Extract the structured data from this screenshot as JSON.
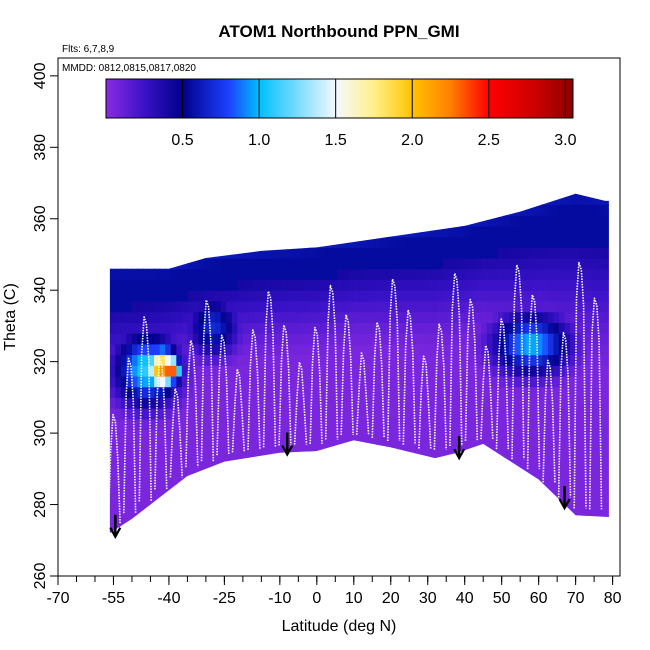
{
  "chart_data": {
    "type": "heatmap",
    "title": "ATOM1 Northbound PPN_GMI",
    "annotations": [
      "Flts: 6,7,8,9",
      "MMDD: 0812,0815,0817,0820"
    ],
    "xlabel": "Latitude (deg N)",
    "ylabel": "Theta (C)",
    "xlim": [
      -70,
      82
    ],
    "ylim": [
      260,
      405
    ],
    "x_ticks": [
      -70,
      -55,
      -40,
      -25,
      -10,
      0,
      10,
      20,
      30,
      40,
      50,
      60,
      70,
      80
    ],
    "x_tick_labels": [
      "-70",
      "-55",
      "-40",
      "-25",
      "-10",
      "0",
      "10",
      "20",
      "30",
      "40",
      "50",
      "60",
      "70",
      "80"
    ],
    "x_minor_step": 5,
    "y_ticks": [
      260,
      280,
      300,
      320,
      340,
      360,
      380,
      400
    ],
    "y_tick_labels": [
      "260",
      "280",
      "300",
      "320",
      "340",
      "360",
      "380",
      "400"
    ],
    "colorbar": {
      "range": [
        0.0,
        3.05
      ],
      "ticks": [
        0.5,
        1.0,
        1.5,
        2.0,
        2.5,
        3.0
      ],
      "tick_labels": [
        "0.5",
        "1.0",
        "1.5",
        "2.0",
        "2.5",
        "3.0"
      ],
      "stops": [
        {
          "v": 0.0,
          "c": "#8a2be2"
        },
        {
          "v": 0.25,
          "c": "#3a12c8"
        },
        {
          "v": 0.5,
          "c": "#00008b"
        },
        {
          "v": 0.8,
          "c": "#1e40ff"
        },
        {
          "v": 1.0,
          "c": "#00bfff"
        },
        {
          "v": 1.5,
          "c": "#f5f8ff"
        },
        {
          "v": 1.75,
          "c": "#fff08a"
        },
        {
          "v": 2.0,
          "c": "#ffc400"
        },
        {
          "v": 2.25,
          "c": "#ff7f00"
        },
        {
          "v": 2.5,
          "c": "#ff0000"
        },
        {
          "v": 2.8,
          "c": "#cc0000"
        },
        {
          "v": 3.05,
          "c": "#8b0000"
        }
      ]
    },
    "tropopause_arrows": [
      {
        "lat": -54.5,
        "theta": 271
      },
      {
        "lat": -8,
        "theta": 294
      },
      {
        "lat": 38.5,
        "theta": 293
      },
      {
        "lat": 67,
        "theta": 279
      }
    ],
    "data_lower_envelope": [
      {
        "lat": -56,
        "theta": 272
      },
      {
        "lat": -50,
        "theta": 276
      },
      {
        "lat": -40,
        "theta": 284
      },
      {
        "lat": -35,
        "theta": 288
      },
      {
        "lat": -25,
        "theta": 292
      },
      {
        "lat": -10,
        "theta": 294.5
      },
      {
        "lat": 0,
        "theta": 295
      },
      {
        "lat": 10,
        "theta": 298
      },
      {
        "lat": 20,
        "theta": 296
      },
      {
        "lat": 32,
        "theta": 293
      },
      {
        "lat": 38,
        "theta": 294.5
      },
      {
        "lat": 45,
        "theta": 297
      },
      {
        "lat": 60,
        "theta": 287
      },
      {
        "lat": 70,
        "theta": 277
      },
      {
        "lat": 79,
        "theta": 276.5
      }
    ],
    "data_upper_envelope": [
      {
        "lat": -62,
        "theta": 346
      },
      {
        "lat": -40,
        "theta": 346
      },
      {
        "lat": -30,
        "theta": 349
      },
      {
        "lat": -15,
        "theta": 351
      },
      {
        "lat": 0,
        "theta": 352
      },
      {
        "lat": 20,
        "theta": 355
      },
      {
        "lat": 40,
        "theta": 358
      },
      {
        "lat": 55,
        "theta": 362
      },
      {
        "lat": 70,
        "theta": 367
      },
      {
        "lat": 78,
        "theta": 365
      }
    ],
    "high_regions": [
      {
        "lat": -46,
        "theta": 318,
        "value": 1.1,
        "dlat": 10,
        "dtheta": 12
      },
      {
        "lat": -42,
        "theta": 318,
        "value": 2.2,
        "dlat": 5,
        "dtheta": 7
      },
      {
        "lat": -39.5,
        "theta": 318,
        "value": 2.6,
        "dlat": 3,
        "dtheta": 4
      },
      {
        "lat": 58,
        "theta": 325,
        "value": 1.0,
        "dlat": 12,
        "dtheta": 10
      },
      {
        "lat": -28,
        "theta": 330,
        "value": 0.7,
        "dlat": 8,
        "dtheta": 10
      }
    ],
    "flight_track_color": "#ffffff"
  }
}
